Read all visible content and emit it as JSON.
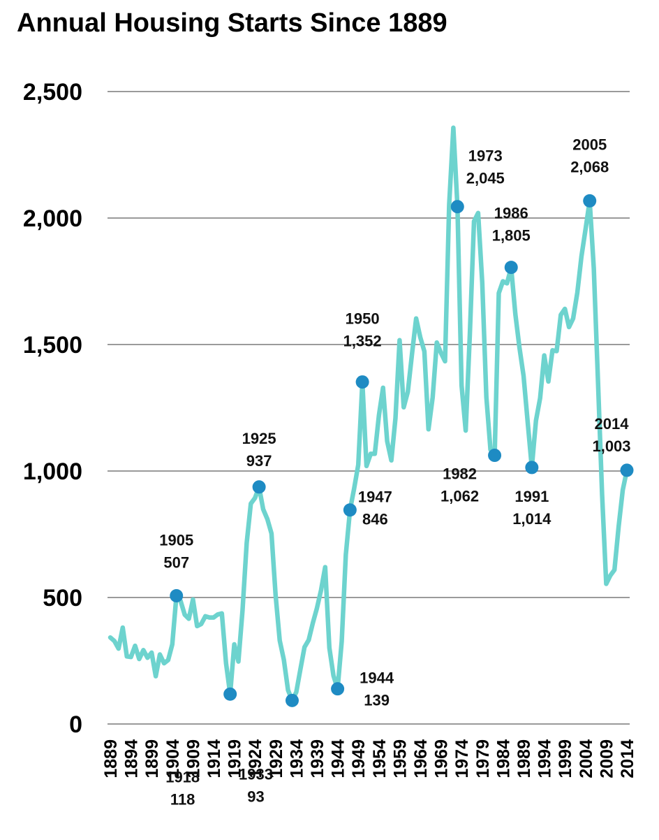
{
  "chart_data": {
    "type": "line",
    "title": "Annual Housing Starts Since 1889",
    "xlabel": "",
    "ylabel": "",
    "ylim": [
      0,
      2500
    ],
    "y_ticks": [
      "0",
      "500",
      "1,000",
      "1,500",
      "2,000",
      "2,500"
    ],
    "y_tick_values": [
      0,
      500,
      1000,
      1500,
      2000,
      2500
    ],
    "x_tick_labels": [
      "1889",
      "1894",
      "1899",
      "1904",
      "1909",
      "1914",
      "1919",
      "1924",
      "1929",
      "1934",
      "1939",
      "1944",
      "1949",
      "1954",
      "1959",
      "1964",
      "1969",
      "1974",
      "1979",
      "1984",
      "1989",
      "1994",
      "1999",
      "2004",
      "2009",
      "2014"
    ],
    "grid": true,
    "legend": "none",
    "line_color": "#6DD3CE",
    "marker_color": "#1E8BC3",
    "series": [
      {
        "x": [
          1889,
          1890,
          1891,
          1892,
          1893,
          1894,
          1895,
          1896,
          1897,
          1898,
          1899,
          1900,
          1901,
          1902,
          1903,
          1904,
          1905,
          1906,
          1907,
          1908,
          1909,
          1910,
          1911,
          1912,
          1913,
          1914,
          1915,
          1916,
          1917,
          1918,
          1919,
          1920,
          1921,
          1922,
          1923,
          1924,
          1925,
          1926,
          1927,
          1928,
          1929,
          1930,
          1931,
          1932,
          1933,
          1934,
          1935,
          1936,
          1937,
          1938,
          1939,
          1940,
          1941,
          1942,
          1943,
          1944,
          1945,
          1946,
          1947,
          1948,
          1949,
          1950,
          1951,
          1952,
          1953,
          1954,
          1955,
          1956,
          1957,
          1958,
          1959,
          1960,
          1961,
          1962,
          1963,
          1964,
          1965,
          1966,
          1967,
          1968,
          1969,
          1970,
          1971,
          1972,
          1973,
          1974,
          1975,
          1976,
          1977,
          1978,
          1979,
          1980,
          1981,
          1982,
          1983,
          1984,
          1985,
          1986,
          1987,
          1988,
          1989,
          1990,
          1991,
          1992,
          1993,
          1994,
          1995,
          1996,
          1997,
          1998,
          1999,
          2000,
          2001,
          2002,
          2003,
          2004,
          2005,
          2006,
          2007,
          2008,
          2009,
          2010,
          2011,
          2012,
          2013,
          2014
        ],
        "values": [
          342,
          328,
          298,
          381,
          267,
          265,
          309,
          257,
          292,
          262,
          282,
          189,
          275,
          240,
          253,
          315,
          507,
          487,
          432,
          416,
          492,
          387,
          395,
          426,
          421,
          421,
          433,
          437,
          240,
          118,
          315,
          247,
          449,
          716,
          871,
          893,
          937,
          849,
          810,
          753,
          509,
          330,
          254,
          134,
          93,
          126,
          216,
          304,
          332,
          399,
          458,
          529,
          620,
          301,
          191,
          139,
          326,
          670,
          846,
          931,
          1025,
          1352,
          1020,
          1068,
          1068,
          1220,
          1329,
          1118,
          1042,
          1209,
          1517,
          1252,
          1313,
          1463,
          1603,
          1529,
          1473,
          1165,
          1292,
          1508,
          1467,
          1434,
          2052,
          2357,
          2045,
          1338,
          1160,
          1538,
          1987,
          2020,
          1745,
          1292,
          1084,
          1062,
          1703,
          1750,
          1742,
          1805,
          1621,
          1488,
          1376,
          1193,
          1014,
          1200,
          1288,
          1457,
          1354,
          1477,
          1474,
          1617,
          1641,
          1569,
          1603,
          1705,
          1848,
          1956,
          2068,
          1801,
          1355,
          906,
          554,
          587,
          609,
          781,
          925,
          1003
        ],
        "points": [
          {
            "year": "1905",
            "value": "507",
            "x": 1905,
            "y": 507
          },
          {
            "year": "1918",
            "value": "118",
            "x": 1918,
            "y": 118
          },
          {
            "year": "1925",
            "value": "937",
            "x": 1925,
            "y": 937
          },
          {
            "year": "1933",
            "value": "93",
            "x": 1933,
            "y": 93
          },
          {
            "year": "1944",
            "value": "139",
            "x": 1944,
            "y": 139
          },
          {
            "year": "1947",
            "value": "846",
            "x": 1947,
            "y": 846
          },
          {
            "year": "1950",
            "value": "1,352",
            "x": 1950,
            "y": 1352
          },
          {
            "year": "1973",
            "value": "2,045",
            "x": 1973,
            "y": 2045
          },
          {
            "year": "1982",
            "value": "1,062",
            "x": 1982,
            "y": 1062
          },
          {
            "year": "1986",
            "value": "1,805",
            "x": 1986,
            "y": 1805
          },
          {
            "year": "1991",
            "value": "1,014",
            "x": 1991,
            "y": 1014
          },
          {
            "year": "2005",
            "value": "2,068",
            "x": 2005,
            "y": 2068
          },
          {
            "year": "2014",
            "value": "1,003",
            "x": 2014,
            "y": 1003
          }
        ]
      }
    ]
  }
}
